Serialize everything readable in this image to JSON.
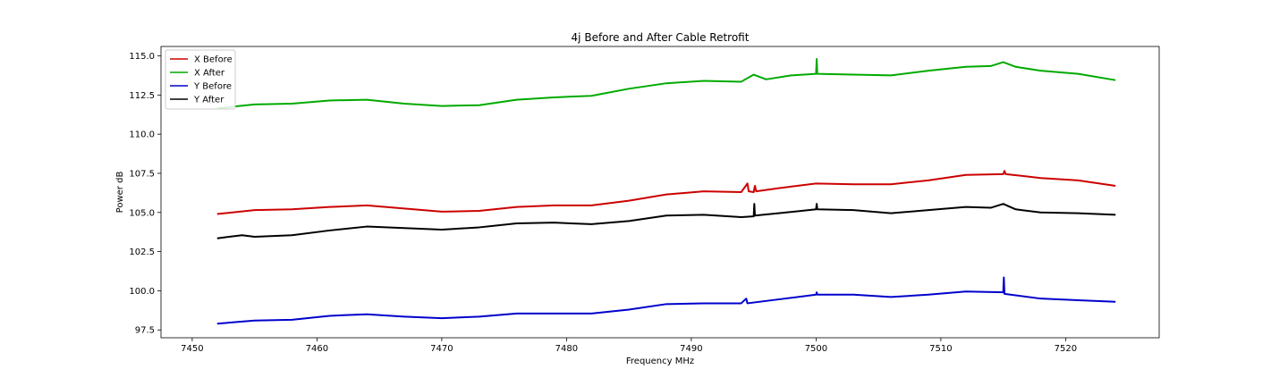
{
  "chart_data": {
    "type": "line",
    "title": "4j Before and After Cable Retrofit",
    "xlabel": "Frequency MHz",
    "ylabel": "Power dB",
    "xlim": [
      7447.5,
      7527.5
    ],
    "ylim": [
      97.0,
      115.6
    ],
    "xticks": [
      7450,
      7460,
      7470,
      7480,
      7490,
      7500,
      7510,
      7520
    ],
    "xtick_labels": [
      "7450",
      "7460",
      "7470",
      "7480",
      "7490",
      "7500",
      "7510",
      "7520"
    ],
    "yticks": [
      97.5,
      100.0,
      102.5,
      105.0,
      107.5,
      110.0,
      112.5,
      115.0
    ],
    "ytick_labels": [
      "97.5",
      "100.0",
      "102.5",
      "105.0",
      "107.5",
      "110.0",
      "112.5",
      "115.0"
    ],
    "grid": false,
    "legend_position": "top-left",
    "series": [
      {
        "name": "X Before",
        "color": "#cc0000",
        "points": [
          [
            7452,
            104.9
          ],
          [
            7455,
            105.15
          ],
          [
            7458,
            105.2
          ],
          [
            7461,
            105.35
          ],
          [
            7464,
            105.45
          ],
          [
            7467,
            105.25
          ],
          [
            7470,
            105.05
          ],
          [
            7473,
            105.1
          ],
          [
            7476,
            105.35
          ],
          [
            7479,
            105.45
          ],
          [
            7482,
            105.45
          ],
          [
            7485,
            105.75
          ],
          [
            7488,
            106.15
          ],
          [
            7491,
            106.35
          ],
          [
            7494,
            106.3
          ],
          [
            7494.5,
            106.85
          ],
          [
            7494.6,
            106.35
          ],
          [
            7495,
            106.3
          ],
          [
            7495.1,
            106.7
          ],
          [
            7495.2,
            106.35
          ],
          [
            7497,
            106.55
          ],
          [
            7500,
            106.85
          ],
          [
            7503,
            106.8
          ],
          [
            7506,
            106.8
          ],
          [
            7509,
            107.05
          ],
          [
            7512,
            107.4
          ],
          [
            7515,
            107.45
          ],
          [
            7515.1,
            107.65
          ],
          [
            7515.2,
            107.45
          ],
          [
            7518,
            107.2
          ],
          [
            7521,
            107.05
          ],
          [
            7524,
            106.7
          ]
        ]
      },
      {
        "name": "X After",
        "color": "#00aa00",
        "points": [
          [
            7452,
            111.65
          ],
          [
            7455,
            111.9
          ],
          [
            7458,
            111.95
          ],
          [
            7461,
            112.15
          ],
          [
            7464,
            112.2
          ],
          [
            7467,
            111.95
          ],
          [
            7470,
            111.8
          ],
          [
            7473,
            111.85
          ],
          [
            7476,
            112.2
          ],
          [
            7479,
            112.35
          ],
          [
            7482,
            112.45
          ],
          [
            7485,
            112.9
          ],
          [
            7488,
            113.25
          ],
          [
            7491,
            113.4
          ],
          [
            7494,
            113.35
          ],
          [
            7495,
            113.8
          ],
          [
            7496,
            113.5
          ],
          [
            7498,
            113.75
          ],
          [
            7500,
            113.85
          ],
          [
            7500.05,
            114.8
          ],
          [
            7500.1,
            113.85
          ],
          [
            7503,
            113.8
          ],
          [
            7506,
            113.75
          ],
          [
            7509,
            114.05
          ],
          [
            7512,
            114.3
          ],
          [
            7514,
            114.35
          ],
          [
            7515,
            114.6
          ],
          [
            7516,
            114.3
          ],
          [
            7518,
            114.05
          ],
          [
            7521,
            113.85
          ],
          [
            7524,
            113.45
          ]
        ]
      },
      {
        "name": "Y Before",
        "color": "#0000cc",
        "points": [
          [
            7452,
            97.9
          ],
          [
            7455,
            98.1
          ],
          [
            7458,
            98.15
          ],
          [
            7461,
            98.4
          ],
          [
            7464,
            98.5
          ],
          [
            7467,
            98.35
          ],
          [
            7470,
            98.25
          ],
          [
            7473,
            98.35
          ],
          [
            7476,
            98.55
          ],
          [
            7479,
            98.55
          ],
          [
            7482,
            98.55
          ],
          [
            7485,
            98.8
          ],
          [
            7488,
            99.15
          ],
          [
            7491,
            99.2
          ],
          [
            7494,
            99.2
          ],
          [
            7494.4,
            99.5
          ],
          [
            7494.5,
            99.2
          ],
          [
            7497,
            99.45
          ],
          [
            7500,
            99.75
          ],
          [
            7500.05,
            99.9
          ],
          [
            7500.1,
            99.75
          ],
          [
            7503,
            99.75
          ],
          [
            7506,
            99.6
          ],
          [
            7509,
            99.75
          ],
          [
            7512,
            99.95
          ],
          [
            7515,
            99.9
          ],
          [
            7515.05,
            100.85
          ],
          [
            7515.1,
            99.8
          ],
          [
            7518,
            99.5
          ],
          [
            7521,
            99.4
          ],
          [
            7524,
            99.3
          ]
        ]
      },
      {
        "name": "Y After",
        "color": "#000000",
        "points": [
          [
            7452,
            103.35
          ],
          [
            7454,
            103.55
          ],
          [
            7455,
            103.45
          ],
          [
            7458,
            103.55
          ],
          [
            7461,
            103.85
          ],
          [
            7464,
            104.1
          ],
          [
            7467,
            104.0
          ],
          [
            7470,
            103.9
          ],
          [
            7473,
            104.05
          ],
          [
            7476,
            104.3
          ],
          [
            7479,
            104.35
          ],
          [
            7482,
            104.25
          ],
          [
            7485,
            104.45
          ],
          [
            7488,
            104.8
          ],
          [
            7491,
            104.85
          ],
          [
            7494,
            104.7
          ],
          [
            7495,
            104.75
          ],
          [
            7495.05,
            105.55
          ],
          [
            7495.1,
            104.8
          ],
          [
            7497,
            104.95
          ],
          [
            7500,
            105.2
          ],
          [
            7500.05,
            105.55
          ],
          [
            7500.1,
            105.2
          ],
          [
            7503,
            105.15
          ],
          [
            7506,
            104.95
          ],
          [
            7509,
            105.15
          ],
          [
            7512,
            105.35
          ],
          [
            7514,
            105.3
          ],
          [
            7515,
            105.55
          ],
          [
            7516,
            105.2
          ],
          [
            7518,
            105.0
          ],
          [
            7521,
            104.95
          ],
          [
            7524,
            104.85
          ]
        ]
      }
    ]
  }
}
